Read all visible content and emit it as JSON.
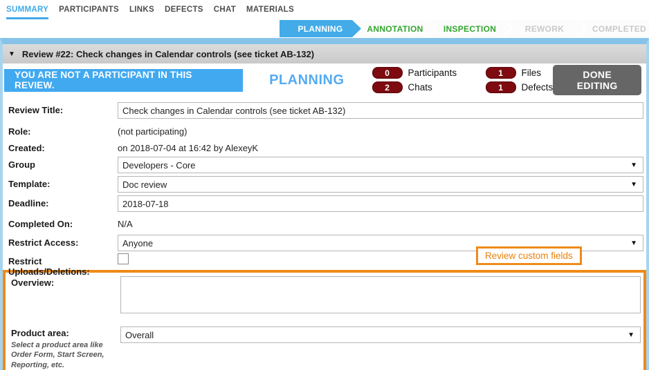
{
  "tabs": [
    {
      "label": "SUMMARY",
      "active": true
    },
    {
      "label": "PARTICIPANTS",
      "active": false
    },
    {
      "label": "LINKS",
      "active": false
    },
    {
      "label": "DEFECTS",
      "active": false
    },
    {
      "label": "CHAT",
      "active": false
    },
    {
      "label": "MATERIALS",
      "active": false
    }
  ],
  "workflow": {
    "steps": [
      {
        "label": "PLANNING",
        "state": "current"
      },
      {
        "label": "ANNOTATION",
        "state": "available"
      },
      {
        "label": "INSPECTION",
        "state": "available"
      },
      {
        "label": "REWORK",
        "state": "disabled"
      },
      {
        "label": "COMPLETED",
        "state": "disabled"
      }
    ]
  },
  "panel": {
    "collapse_icon": "▼",
    "title": "Review #22: Check changes in Calendar controls (see ticket AB-132)"
  },
  "banner": {
    "message": "YOU ARE NOT A PARTICIPANT IN THIS REVIEW.",
    "phase": "PLANNING"
  },
  "stats": [
    {
      "count": "0",
      "label": "Participants"
    },
    {
      "count": "1",
      "label": "Files"
    },
    {
      "count": "2",
      "label": "Chats"
    },
    {
      "count": "1",
      "label": "Defects"
    }
  ],
  "actions": {
    "done_editing": "DONE EDITING"
  },
  "form": {
    "review_title": {
      "label": "Review Title:",
      "value": "Check changes in Calendar controls (see ticket AB-132)"
    },
    "role": {
      "label": "Role:",
      "value": "(not participating)"
    },
    "created": {
      "label": "Created:",
      "value": "on 2018-07-04 at 16:42 by AlexeyK"
    },
    "group": {
      "label": "Group",
      "value": "Developers - Core"
    },
    "template": {
      "label": "Template:",
      "value": "Doc review"
    },
    "deadline": {
      "label": "Deadline:",
      "value": "2018-07-18"
    },
    "completed_on": {
      "label": "Completed On:",
      "value": "N/A"
    },
    "restrict_access": {
      "label": "Restrict Access:",
      "value": "Anyone"
    },
    "restrict_uploads": {
      "label": "Restrict Uploads/Deletions:",
      "checked": false
    }
  },
  "custom_fields": {
    "callout": "Review custom fields",
    "overview": {
      "label": "Overview:",
      "value": ""
    },
    "product_area": {
      "label": "Product area:",
      "hint": "Select a product area like Order Form, Start Screen, Reporting, etc.",
      "value": "Overall"
    }
  },
  "icons": {
    "dropdown": "▼"
  },
  "colors": {
    "tab_active": "#3fa9e8",
    "workflow_current_bg": "#42abe8",
    "workflow_available_text": "#33a62e",
    "workflow_disabled_text": "#c9c9c9",
    "panel_border_blue": "#a6d4ef",
    "banner_blue": "#41a9f0",
    "phase_text_blue": "#55abf2",
    "badge_red": "#7d0b10",
    "done_button_gray": "#666666",
    "custom_fields_orange": "#ef8a19"
  }
}
